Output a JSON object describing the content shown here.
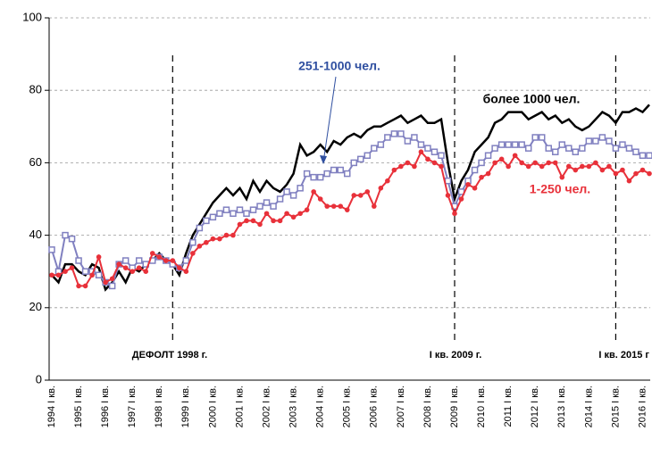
{
  "chart_data": {
    "type": "line",
    "categories": [
      "1994 I кв.",
      null,
      null,
      null,
      "1995 I кв.",
      null,
      null,
      null,
      "1996 I кв.",
      null,
      null,
      null,
      "1997 I кв.",
      null,
      null,
      null,
      "1998 I кв.",
      null,
      null,
      null,
      "1999 I кв.",
      null,
      null,
      null,
      "2000 I кв.",
      null,
      null,
      null,
      "2001 I кв.",
      null,
      null,
      null,
      "2002 I кв.",
      null,
      null,
      null,
      "2003 I кв.",
      null,
      null,
      null,
      "2004 I кв.",
      null,
      null,
      null,
      "2005 I кв.",
      null,
      null,
      null,
      "2006 I кв.",
      null,
      null,
      null,
      "2007 I кв.",
      null,
      null,
      null,
      "2008 I кв.",
      null,
      null,
      null,
      "2009 I кв.",
      null,
      null,
      null,
      "2010 I кв.",
      null,
      null,
      null,
      "2011 I кв.",
      null,
      null,
      null,
      "2012 I кв.",
      null,
      null,
      null,
      "2013 I кв.",
      null,
      null,
      null,
      "2014 I кв.",
      null,
      null,
      null,
      "2015 I кв.",
      null,
      null,
      null,
      "2016 I кв.",
      null
    ],
    "series": [
      {
        "name": "более 1000 чел.",
        "color": "#000000",
        "marker": "none",
        "values": [
          29,
          27,
          32,
          32,
          30,
          29,
          32,
          31,
          25,
          27,
          30,
          27,
          31,
          30,
          32,
          33,
          35,
          33,
          32,
          29,
          35,
          40,
          43,
          46,
          49,
          51,
          53,
          51,
          53,
          50,
          55,
          52,
          55,
          53,
          52,
          54,
          57,
          65,
          62,
          63,
          65,
          63,
          66,
          65,
          67,
          68,
          67,
          69,
          70,
          70,
          71,
          72,
          73,
          71,
          72,
          73,
          71,
          71,
          72,
          60,
          50,
          55,
          58,
          63,
          65,
          67,
          71,
          72,
          74,
          74,
          74,
          72,
          73,
          74,
          72,
          73,
          71,
          72,
          70,
          69,
          70,
          72,
          74,
          73,
          71,
          74,
          74,
          75,
          74,
          76
        ]
      },
      {
        "name": "251-1000 чел.",
        "color": "#8080c0",
        "marker": "square",
        "values": [
          36,
          30,
          40,
          39,
          33,
          30,
          30,
          29,
          27,
          26,
          32,
          33,
          31,
          33,
          32,
          33,
          34,
          33,
          32,
          31,
          33,
          38,
          42,
          44,
          45,
          46,
          47,
          46,
          47,
          46,
          47,
          48,
          49,
          48,
          50,
          52,
          51,
          53,
          57,
          56,
          56,
          57,
          58,
          58,
          57,
          60,
          61,
          62,
          64,
          65,
          67,
          68,
          68,
          66,
          67,
          65,
          64,
          63,
          62,
          55,
          48,
          52,
          55,
          58,
          60,
          62,
          64,
          65,
          65,
          65,
          65,
          64,
          67,
          67,
          64,
          63,
          65,
          64,
          63,
          64,
          66,
          66,
          67,
          66,
          64,
          65,
          64,
          63,
          62,
          62
        ]
      },
      {
        "name": "1-250 чел.",
        "color": "#e8313a",
        "marker": "circle",
        "values": [
          29,
          29,
          30,
          31,
          26,
          26,
          29,
          34,
          27,
          28,
          32,
          31,
          30,
          31,
          30,
          35,
          34,
          33,
          33,
          31,
          30,
          35,
          37,
          38,
          39,
          39,
          40,
          40,
          43,
          44,
          44,
          43,
          46,
          44,
          44,
          46,
          45,
          46,
          47,
          52,
          50,
          48,
          48,
          48,
          47,
          51,
          51,
          52,
          48,
          53,
          55,
          58,
          59,
          60,
          59,
          63,
          61,
          60,
          59,
          51,
          46,
          50,
          54,
          53,
          56,
          57,
          60,
          61,
          59,
          62,
          60,
          59,
          60,
          59,
          60,
          60,
          56,
          59,
          58,
          59,
          59,
          60,
          58,
          59,
          57,
          58,
          55,
          57,
          58,
          57
        ]
      }
    ],
    "ylim": [
      0,
      100
    ],
    "yticks": [
      0,
      20,
      40,
      60,
      80,
      100
    ],
    "grid": true,
    "annotations": [
      "ДЕФОЛТ 1998 г.",
      "I кв. 2009 г.",
      "I кв. 2015 г"
    ]
  }
}
